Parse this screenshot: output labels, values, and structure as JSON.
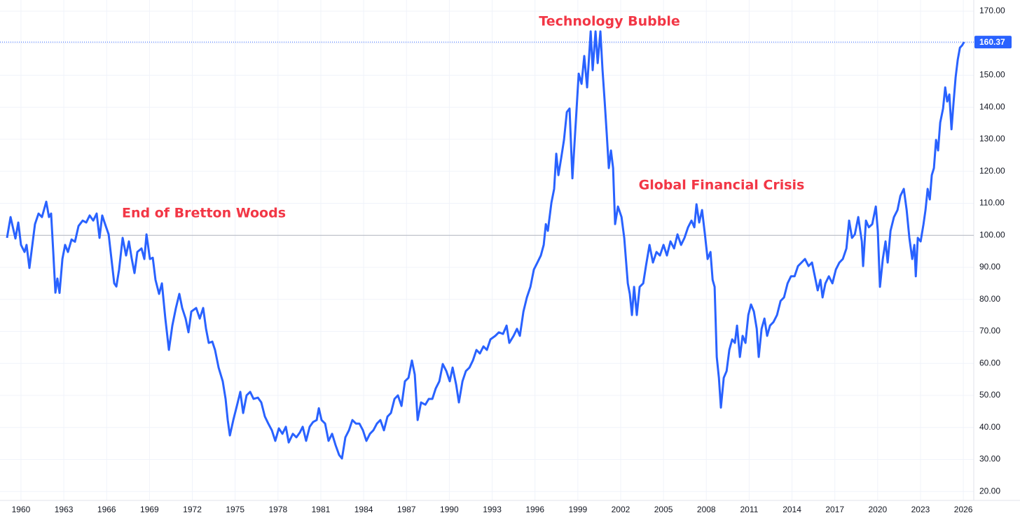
{
  "chart_data": {
    "type": "line",
    "annotations": [
      "End of Bretton Woods",
      "Technology Bubble",
      "Global Financial Crisis"
    ],
    "color": "#2962ff",
    "grid": true,
    "y_axis_side": "right",
    "reference_line": 100,
    "xlim": [
      1958.53,
      2026.73
    ],
    "xticks": [
      1960,
      1963,
      1966,
      1969,
      1972,
      1975,
      1978,
      1981,
      1984,
      1987,
      1990,
      1993,
      1996,
      1999,
      2002,
      2005,
      2008,
      2011,
      2014,
      2017,
      2020,
      2023,
      2026
    ],
    "ylim": [
      17.2,
      173.5
    ],
    "yticks": [
      {
        "value": 20,
        "label": "20.00"
      },
      {
        "value": 30,
        "label": "30.00"
      },
      {
        "value": 40,
        "label": "40.00"
      },
      {
        "value": 50,
        "label": "50.00"
      },
      {
        "value": 60,
        "label": "60.00"
      },
      {
        "value": 70,
        "label": "70.00"
      },
      {
        "value": 80,
        "label": "80.00"
      },
      {
        "value": 90,
        "label": "90.00"
      },
      {
        "value": 100,
        "label": "100.00"
      },
      {
        "value": 110,
        "label": "110.00"
      },
      {
        "value": 120,
        "label": "120.00"
      },
      {
        "value": 130,
        "label": "130.00"
      },
      {
        "value": 140,
        "label": "140.00"
      },
      {
        "value": 150,
        "label": "150.00"
      },
      {
        "value": 160,
        "label": "160.00"
      },
      {
        "value": 170,
        "label": "170.00"
      }
    ],
    "x": [
      1959.02,
      1959.27,
      1959.61,
      1959.81,
      1960.0,
      1960.25,
      1960.39,
      1960.59,
      1960.98,
      1961.23,
      1961.47,
      1961.77,
      1961.96,
      1962.11,
      1962.26,
      1962.41,
      1962.55,
      1962.7,
      1962.9,
      1963.09,
      1963.29,
      1963.54,
      1963.78,
      1964.03,
      1964.32,
      1964.57,
      1964.81,
      1965.06,
      1965.3,
      1965.5,
      1965.69,
      1965.89,
      1966.14,
      1966.28,
      1966.53,
      1966.68,
      1966.87,
      1967.12,
      1967.36,
      1967.56,
      1967.76,
      1967.95,
      1968.15,
      1968.44,
      1968.64,
      1968.79,
      1969.03,
      1969.23,
      1969.42,
      1969.67,
      1969.87,
      1970.11,
      1970.36,
      1970.6,
      1970.85,
      1971.09,
      1971.29,
      1971.53,
      1971.73,
      1971.93,
      1972.27,
      1972.52,
      1972.76,
      1972.96,
      1973.15,
      1973.4,
      1973.59,
      1973.84,
      1974.13,
      1974.33,
      1974.48,
      1974.63,
      1974.87,
      1975.12,
      1975.36,
      1975.56,
      1975.8,
      1976.05,
      1976.29,
      1976.59,
      1976.83,
      1977.08,
      1977.32,
      1977.57,
      1977.81,
      1978.06,
      1978.31,
      1978.55,
      1978.75,
      1979.04,
      1979.29,
      1979.53,
      1979.73,
      1979.97,
      1980.22,
      1980.46,
      1980.71,
      1980.86,
      1981.05,
      1981.3,
      1981.54,
      1981.79,
      1982.03,
      1982.28,
      1982.48,
      1982.72,
      1982.97,
      1983.21,
      1983.46,
      1983.7,
      1983.95,
      1984.19,
      1984.44,
      1984.68,
      1984.93,
      1985.17,
      1985.42,
      1985.67,
      1985.91,
      1986.16,
      1986.4,
      1986.65,
      1986.89,
      1987.14,
      1987.38,
      1987.58,
      1987.78,
      1988.02,
      1988.32,
      1988.56,
      1988.81,
      1989.05,
      1989.3,
      1989.54,
      1989.79,
      1990.03,
      1990.23,
      1990.48,
      1990.67,
      1990.92,
      1991.16,
      1991.41,
      1991.65,
      1991.9,
      1992.14,
      1992.39,
      1992.63,
      1992.88,
      1993.22,
      1993.47,
      1993.76,
      1994.01,
      1994.2,
      1994.5,
      1994.74,
      1994.94,
      1995.19,
      1995.43,
      1995.68,
      1995.92,
      1996.17,
      1996.41,
      1996.61,
      1996.76,
      1996.9,
      1997.15,
      1997.34,
      1997.49,
      1997.64,
      1997.84,
      1998.03,
      1998.23,
      1998.42,
      1998.62,
      1998.87,
      1999.06,
      1999.26,
      1999.45,
      1999.65,
      1999.9,
      2000.04,
      2000.24,
      2000.39,
      2000.58,
      2000.73,
      2000.88,
      2001.02,
      2001.17,
      2001.32,
      2001.47,
      2001.61,
      2001.81,
      2002.06,
      2002.25,
      2002.5,
      2002.64,
      2002.79,
      2002.94,
      2003.13,
      2003.33,
      2003.58,
      2003.77,
      2004.02,
      2004.26,
      2004.51,
      2004.75,
      2005.0,
      2005.24,
      2005.49,
      2005.74,
      2005.98,
      2006.23,
      2006.47,
      2006.72,
      2006.96,
      2007.16,
      2007.31,
      2007.5,
      2007.7,
      2007.9,
      2008.09,
      2008.29,
      2008.44,
      2008.58,
      2008.73,
      2008.88,
      2009.02,
      2009.22,
      2009.42,
      2009.61,
      2009.81,
      2010.0,
      2010.15,
      2010.35,
      2010.54,
      2010.74,
      2010.94,
      2011.13,
      2011.33,
      2011.53,
      2011.67,
      2011.87,
      2012.07,
      2012.26,
      2012.46,
      2012.7,
      2012.95,
      2013.2,
      2013.44,
      2013.69,
      2013.93,
      2014.18,
      2014.42,
      2014.67,
      2014.91,
      2015.16,
      2015.4,
      2015.6,
      2015.8,
      2015.99,
      2016.14,
      2016.34,
      2016.58,
      2016.83,
      2017.07,
      2017.32,
      2017.56,
      2017.81,
      2018.0,
      2018.2,
      2018.4,
      2018.64,
      2018.89,
      2018.98,
      2019.18,
      2019.38,
      2019.62,
      2019.87,
      2020.01,
      2020.16,
      2020.36,
      2020.55,
      2020.7,
      2020.9,
      2021.14,
      2021.39,
      2021.59,
      2021.83,
      2022.03,
      2022.22,
      2022.42,
      2022.57,
      2022.67,
      2022.81,
      2023.01,
      2023.21,
      2023.35,
      2023.5,
      2023.65,
      2023.79,
      2023.94,
      2024.09,
      2024.23,
      2024.38,
      2024.58,
      2024.73,
      2024.87,
      2025.02,
      2025.17,
      2025.32,
      2025.46,
      2025.61,
      2025.76,
      2025.91,
      2026.05
    ],
    "values": [
      99.2,
      105.7,
      99.0,
      104.0,
      97.0,
      94.8,
      97.0,
      89.8,
      103.5,
      106.8,
      105.7,
      110.5,
      105.7,
      106.8,
      94.8,
      82.1,
      86.5,
      82.0,
      92.6,
      97.0,
      94.8,
      98.7,
      98.0,
      102.9,
      104.6,
      104.0,
      106.2,
      104.6,
      106.8,
      99.2,
      106.2,
      103.5,
      100.3,
      94.8,
      85.0,
      84.0,
      89.3,
      99.2,
      93.7,
      98.1,
      92.6,
      88.2,
      94.8,
      95.9,
      92.6,
      100.3,
      92.6,
      93.0,
      86.1,
      81.7,
      85.0,
      74.0,
      64.2,
      71.8,
      77.3,
      81.7,
      77.3,
      74.0,
      69.7,
      76.2,
      77.3,
      74.0,
      77.3,
      70.8,
      66.4,
      66.8,
      64.2,
      58.7,
      54.4,
      48.9,
      42.3,
      37.5,
      42.3,
      46.7,
      51.1,
      44.5,
      50.0,
      51.1,
      48.9,
      49.3,
      47.8,
      43.4,
      41.2,
      39.1,
      35.8,
      39.7,
      38.0,
      40.2,
      35.3,
      38.0,
      36.9,
      38.4,
      40.2,
      35.8,
      40.2,
      41.7,
      42.3,
      46.0,
      42.3,
      41.2,
      35.8,
      38.0,
      34.5,
      31.4,
      30.3,
      36.9,
      39.1,
      42.3,
      41.2,
      41.2,
      39.1,
      35.8,
      38.0,
      39.1,
      41.2,
      42.3,
      39.1,
      43.4,
      44.5,
      48.9,
      50.0,
      46.7,
      54.4,
      55.5,
      60.9,
      56.5,
      42.3,
      47.8,
      47.1,
      48.9,
      48.9,
      52.2,
      54.4,
      59.8,
      57.6,
      54.4,
      58.7,
      53.3,
      47.8,
      54.4,
      57.6,
      58.7,
      60.9,
      64.2,
      63.1,
      65.3,
      64.2,
      67.5,
      68.6,
      69.7,
      69.2,
      71.8,
      66.4,
      68.6,
      70.8,
      68.6,
      76.2,
      80.6,
      83.9,
      89.3,
      91.5,
      93.7,
      97.0,
      103.5,
      101.4,
      110.2,
      114.5,
      125.5,
      118.8,
      124.3,
      129.8,
      138.5,
      139.6,
      117.8,
      136.3,
      150.5,
      147.3,
      156.0,
      146.2,
      163.7,
      151.6,
      163.7,
      153.8,
      163.7,
      151.6,
      141.8,
      132.0,
      121.0,
      126.5,
      121.0,
      103.5,
      109.0,
      105.7,
      99.2,
      85.0,
      81.7,
      75.1,
      83.9,
      75.1,
      83.9,
      85.0,
      90.4,
      97.0,
      91.5,
      94.8,
      93.7,
      97.0,
      93.7,
      98.1,
      95.9,
      100.3,
      97.0,
      99.2,
      102.5,
      104.6,
      102.5,
      109.7,
      104.0,
      107.9,
      100.3,
      92.6,
      94.8,
      86.1,
      83.9,
      62.0,
      55.5,
      46.2,
      55.5,
      57.6,
      64.2,
      67.5,
      66.4,
      71.8,
      62.0,
      68.6,
      66.4,
      75.1,
      78.4,
      76.2,
      70.8,
      62.0,
      70.8,
      74.0,
      68.6,
      71.8,
      72.9,
      75.1,
      79.5,
      80.6,
      85.0,
      87.2,
      87.2,
      90.4,
      91.5,
      92.6,
      90.4,
      91.5,
      87.2,
      82.8,
      86.1,
      80.6,
      85.0,
      87.2,
      85.0,
      89.3,
      91.5,
      92.6,
      95.9,
      104.6,
      99.2,
      100.3,
      105.7,
      98.1,
      90.4,
      104.6,
      102.5,
      103.5,
      109.0,
      101.4,
      83.9,
      92.6,
      98.1,
      91.5,
      101.4,
      105.7,
      107.9,
      112.3,
      114.5,
      107.9,
      99.2,
      92.6,
      97.0,
      87.2,
      99.2,
      98.1,
      103.5,
      107.9,
      114.5,
      111.2,
      118.8,
      121.0,
      129.8,
      126.5,
      135.2,
      139.6,
      146.2,
      141.8,
      144.0,
      133.1,
      141.8,
      149.4,
      154.9,
      158.6,
      159.3,
      160.37
    ]
  }
}
